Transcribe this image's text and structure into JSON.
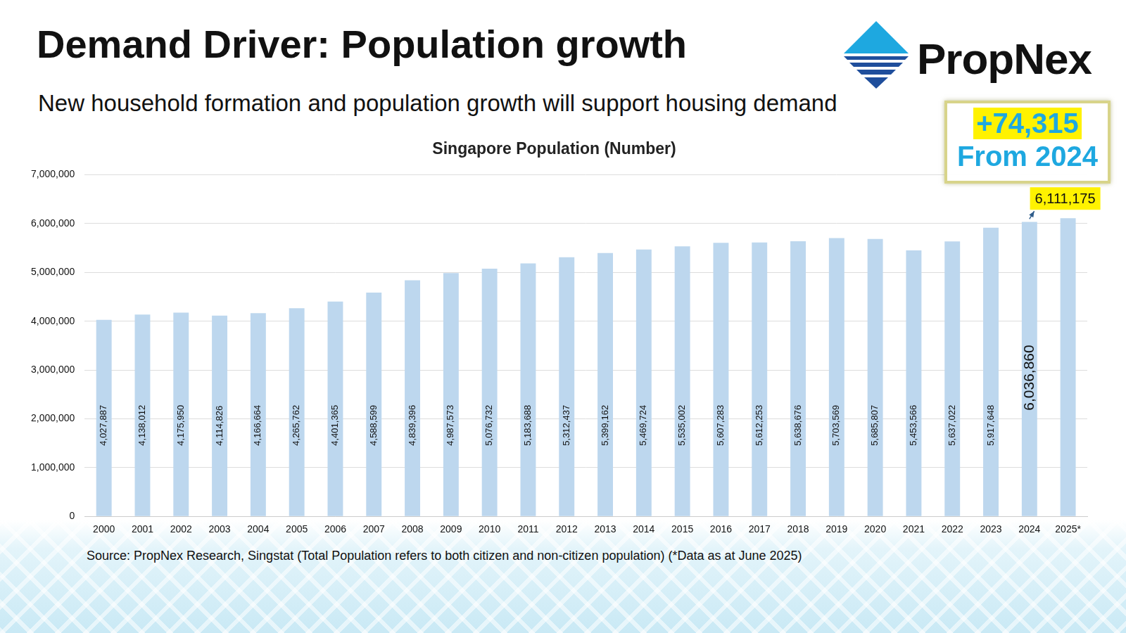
{
  "header": {
    "title": "Demand Driver: Population growth",
    "subtitle": "New household formation and population growth will support housing demand",
    "logo": "PropNex"
  },
  "annotation": {
    "change": "+74,315",
    "note": "From 2024"
  },
  "source": "Source: PropNex Research, Singstat (Total Population refers to both citizen and non-citizen population) (*Data as at June 2025)",
  "chart_data": {
    "type": "bar",
    "title": "Singapore Population (Number)",
    "categories": [
      "2000",
      "2001",
      "2002",
      "2003",
      "2004",
      "2005",
      "2006",
      "2007",
      "2008",
      "2009",
      "2010",
      "2011",
      "2012",
      "2013",
      "2014",
      "2015",
      "2016",
      "2017",
      "2018",
      "2019",
      "2020",
      "2021",
      "2022",
      "2023",
      "2024",
      "2025*"
    ],
    "values": [
      4027887,
      4138012,
      4175950,
      4114826,
      4166664,
      4265762,
      4401365,
      4588599,
      4839396,
      4987573,
      5076732,
      5183688,
      5312437,
      5399162,
      5469724,
      5535002,
      5607283,
      5612253,
      5638676,
      5703569,
      5685807,
      5453566,
      5637022,
      5917648,
      6036860,
      6111175
    ],
    "value_labels": [
      "4,027,887",
      "4,138,012",
      "4,175,950",
      "4,114,826",
      "4,166,664",
      "4,265,762",
      "4,401,365",
      "4,588,599",
      "4,839,396",
      "4,987,573",
      "5,076,732",
      "5,183,688",
      "5,312,437",
      "5,399,162",
      "5,469,724",
      "5,535,002",
      "5,607,283",
      "5,612,253",
      "5,638,676",
      "5,703,569",
      "5,685,807",
      "5,453,566",
      "5,637,022",
      "5,917,648",
      "6,036,860",
      "6,111,175"
    ],
    "color": "#bdd7ee",
    "ylim": [
      0,
      7000000
    ],
    "yticks": [
      {
        "value": 0,
        "label": "0"
      },
      {
        "value": 1000000,
        "label": "1,000,000"
      },
      {
        "value": 2000000,
        "label": "2,000,000"
      },
      {
        "value": 3000000,
        "label": "3,000,000"
      },
      {
        "value": 4000000,
        "label": "4,000,000"
      },
      {
        "value": 5000000,
        "label": "5,000,000"
      },
      {
        "value": 6000000,
        "label": "6,000,000"
      },
      {
        "value": 7000000,
        "label": "7,000,000"
      }
    ],
    "grid": true,
    "data_labels": true
  }
}
